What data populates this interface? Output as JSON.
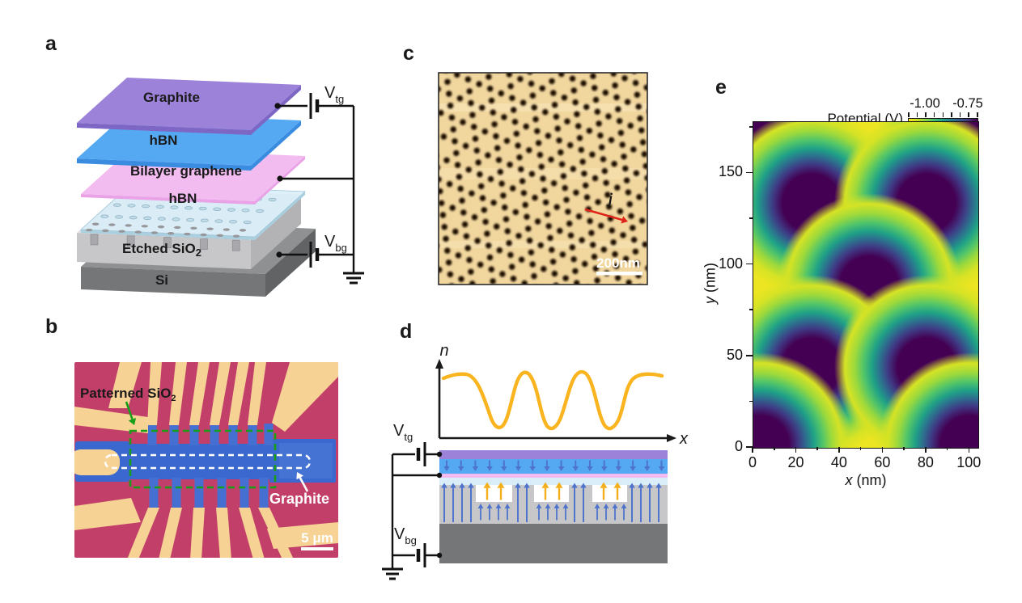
{
  "figure": {
    "background": "#ffffff"
  },
  "chart_data": {
    "type": "heatmap",
    "title": "Potential (V)",
    "xlabel": "x (nm)",
    "ylabel": "y (nm)",
    "x_range": [
      0,
      104
    ],
    "y_range": [
      0,
      178
    ],
    "x_ticks": [
      0,
      20,
      40,
      60,
      80,
      100
    ],
    "y_ticks": [
      0,
      50,
      100,
      150
    ],
    "colorbar_ticks": [
      -1.0,
      -0.75
    ],
    "colormap": "viridis-reversed",
    "background_potential_V": -1.0,
    "well_potential_V": -0.75,
    "well_radius_nm": 16,
    "well_centers_nm": [
      [
        2,
        175
      ],
      [
        100,
        173
      ],
      [
        27,
        134
      ],
      [
        80,
        134
      ],
      [
        53.5,
        89
      ],
      [
        27,
        44
      ],
      [
        80,
        44
      ],
      [
        3,
        2
      ],
      [
        100,
        2
      ]
    ]
  },
  "panels": {
    "a": {
      "label": "a",
      "layers": {
        "graphite": "Graphite",
        "hbn_top": "hBN",
        "bilayer": "Bilayer graphene",
        "hbn_bottom": "hBN",
        "etched": "Etched SiO",
        "etched_sub": "2",
        "si": "Si"
      },
      "vtg": "V",
      "vtg_sub": "tg",
      "vbg": "V",
      "vbg_sub": "bg",
      "colors": {
        "graphite": "#9c82d9",
        "graphite_edge": "#7e66c4",
        "hbn": "#55a9f3",
        "hbn_edge": "#3a8ce0",
        "bilayer": "#f3bcf1",
        "bilayer_edge": "#e9a2e6",
        "hbn_pale": "#d9eef8",
        "hbn_pale_edge": "#aacfdf",
        "sio2_top": "#dfdfe2",
        "sio2_front": "#c7c7ca",
        "sio2_side": "#b3b3b6",
        "si_top": "#8e9092",
        "si_front": "#747678",
        "si_side": "#616365",
        "hole": "#97979b"
      }
    },
    "b": {
      "label": "b",
      "patterned_label": "Patterned SiO",
      "patterned_sub": "2",
      "graphite_label": "Graphite",
      "scale_label": "5 μm",
      "colors": {
        "background": "#c23f6a",
        "gold": "#f6d294",
        "flake_blue": "#3b68cf",
        "stub_blue": "#466fd2",
        "annotation_green": "#17a017"
      }
    },
    "c": {
      "label": "c",
      "current_label": "j",
      "scale_label": "200nm",
      "arrow_color": "#e02318",
      "pattern": {
        "spacing": 14.8,
        "rotation_deg": -37,
        "dot_radius": 3.7,
        "dot_color": "#1d0e02",
        "background": "#f1d79e"
      }
    },
    "d": {
      "label": "d",
      "y_axis": "n",
      "x_axis": "x",
      "vtg": "V",
      "vtg_sub": "tg",
      "vbg": "V",
      "vbg_sub": "bg",
      "colors": {
        "field_blue": "#4f74cc",
        "field_yellow": "#f3ae1d",
        "curve": "#f9b41f"
      }
    },
    "e": {
      "label": "e",
      "colorbar": {
        "title": "Potential (V)",
        "tick_labels": [
          "-1.00",
          "-0.75"
        ]
      },
      "x_axis": {
        "label_var": "x",
        "label_unit": " (nm)",
        "ticks": [
          0,
          20,
          40,
          60,
          80,
          100
        ],
        "minor_ticks": [
          10,
          30,
          50,
          70,
          90
        ]
      },
      "y_axis": {
        "label_var": "y",
        "label_unit": " (nm)",
        "ticks": [
          0,
          50,
          100,
          150
        ],
        "minor_ticks": [
          25,
          75,
          125,
          175
        ]
      },
      "map": {
        "bg": "#ece522",
        "blob_centers_nm": [
          [
            2,
            175
          ],
          [
            100,
            173
          ],
          [
            27,
            134
          ],
          [
            80,
            134
          ],
          [
            53.5,
            89
          ],
          [
            27,
            44
          ],
          [
            80,
            44
          ],
          [
            3,
            2
          ],
          [
            100,
            2
          ]
        ]
      }
    }
  }
}
